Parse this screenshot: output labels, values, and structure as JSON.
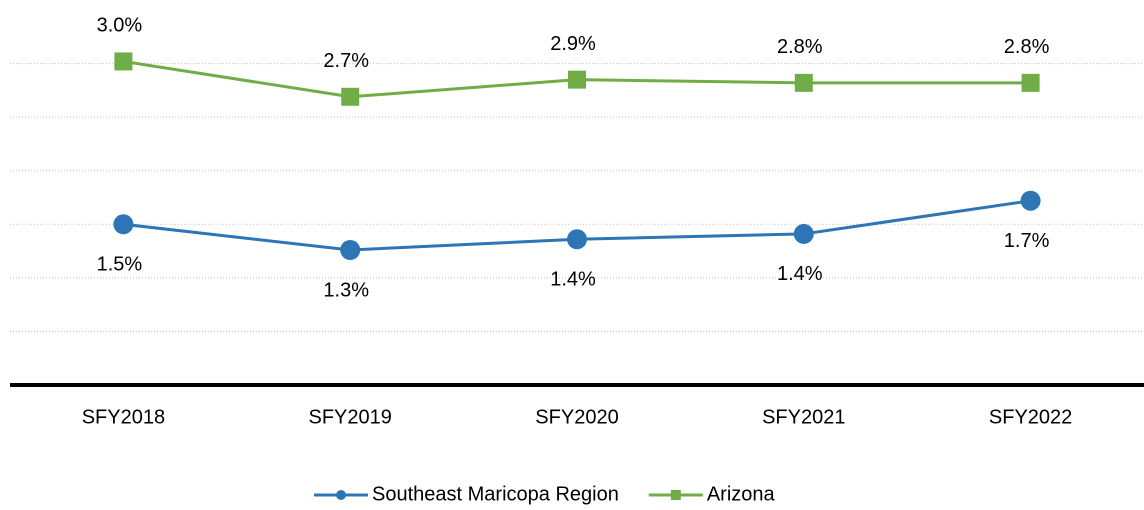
{
  "chart_data": {
    "type": "line",
    "categories": [
      "SFY2018",
      "SFY2019",
      "SFY2020",
      "SFY2021",
      "SFY2022"
    ],
    "series": [
      {
        "name": "Southeast Maricopa Region",
        "color": "#2e75b6",
        "marker": "circle",
        "values": [
          1.5,
          1.26,
          1.36,
          1.41,
          1.72
        ],
        "value_labels": [
          "1.5%",
          "1.3%",
          "1.4%",
          "1.4%",
          "1.7%"
        ]
      },
      {
        "name": "Arizona",
        "color": "#70ad47",
        "marker": "square",
        "values": [
          3.02,
          2.69,
          2.85,
          2.82,
          2.82
        ],
        "value_labels": [
          "3.0%",
          "2.7%",
          "2.9%",
          "2.8%",
          "2.8%"
        ]
      }
    ],
    "ylim": [
      0,
      3.5
    ],
    "yticks": [
      0.5,
      1,
      1.5,
      2,
      2.5,
      3
    ],
    "grid": true,
    "legend": "bottom"
  }
}
